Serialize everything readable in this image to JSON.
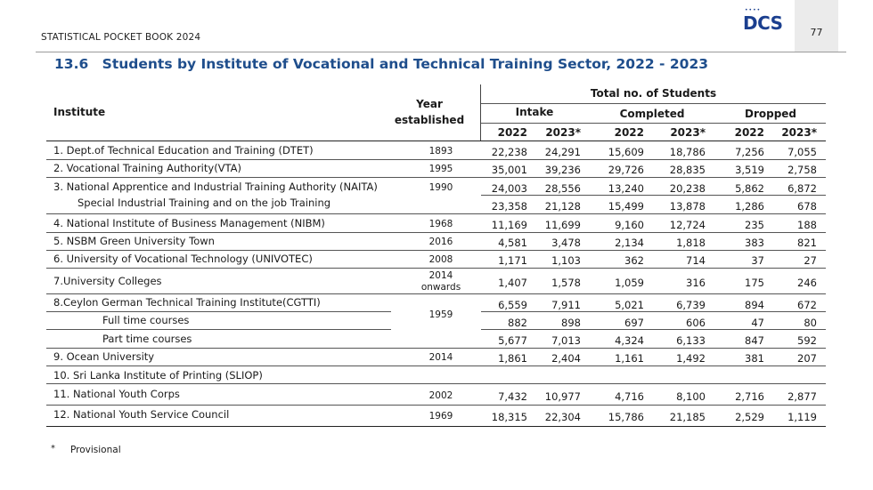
{
  "header": {
    "publication": "STATISTICAL POCKET BOOK 2024",
    "logo_text": "DCS",
    "logo_dots": "••••",
    "page_number": "77"
  },
  "title": {
    "number": "13.6",
    "text": "Students by Institute of Vocational and Technical Training Sector, 2022 - 2023"
  },
  "table": {
    "col_institute": "Institute",
    "col_year_1": "Year",
    "col_year_2": "established",
    "group_total": "Total no. of Students",
    "group_intake": "Intake",
    "group_completed": "Completed",
    "group_dropped": "Dropped",
    "years": [
      "2022",
      "2023*",
      "2022",
      "2023*",
      "2022",
      "2023*"
    ],
    "rows": [
      {
        "institute": "1. Dept.of Technical Education and Training  (DTET)",
        "year": "1893",
        "v": [
          "22,238",
          "24,291",
          "15,609",
          "18,786",
          "7,256",
          "7,055"
        ]
      },
      {
        "institute": "2. Vocational Training Authority(VTA)",
        "year": "1995",
        "v": [
          "35,001",
          "39,236",
          "29,726",
          "28,835",
          "3,519",
          "2,758"
        ]
      },
      {
        "institute": "3. National Apprentice and Industrial Training Authority (NAITA)",
        "year": "1990",
        "v": [
          "24,003",
          "28,556",
          "13,240",
          "20,238",
          "5,862",
          "6,872"
        ]
      },
      {
        "institute": "Special Industrial Training and on  the job Training",
        "year": "",
        "v": [
          "23,358",
          "21,128",
          "15,499",
          "13,878",
          "1,286",
          "678"
        ]
      },
      {
        "institute": "4. National Institute of Business Management (NIBM)",
        "year": "1968",
        "v": [
          "11,169",
          "11,699",
          "9,160",
          "12,724",
          "235",
          "188"
        ]
      },
      {
        "institute": "5. NSBM Green University Town",
        "year": "2016",
        "v": [
          "4,581",
          "3,478",
          "2,134",
          "1,818",
          "383",
          "821"
        ]
      },
      {
        "institute": "6. University of Vocational Technology (UNIVOTEC)",
        "year": "2008",
        "v": [
          "1,171",
          "1,103",
          "362",
          "714",
          "37",
          "27"
        ]
      },
      {
        "institute": "7.University Colleges",
        "year_1": "2014",
        "year_2": "onwards",
        "v": [
          "1,407",
          "1,578",
          "1,059",
          "316",
          "175",
          "246"
        ]
      },
      {
        "institute": "8.Ceylon German Technical Training Institute(CGTTI)",
        "year": "1959",
        "v": [
          "6,559",
          "7,911",
          "5,021",
          "6,739",
          "894",
          "672"
        ]
      },
      {
        "institute": "Full time courses",
        "year": "",
        "v": [
          "882",
          "898",
          "697",
          "606",
          "47",
          "80"
        ]
      },
      {
        "institute": "Part time courses",
        "year": "",
        "v": [
          "5,677",
          "7,013",
          "4,324",
          "6,133",
          "847",
          "592"
        ]
      },
      {
        "institute": "9. Ocean University",
        "year": "2014",
        "v": [
          "1,861",
          "2,404",
          "1,161",
          "1,492",
          "381",
          "207"
        ]
      },
      {
        "institute": "10. Sri Lanka Institute of Printing (SLIOP)",
        "year": "",
        "v": [
          "",
          "",
          "",
          "",
          "",
          ""
        ]
      },
      {
        "institute": "11. National Youth Corps",
        "year": "2002",
        "v": [
          "7,432",
          "10,977",
          "4,716",
          "8,100",
          "2,716",
          "2,877"
        ]
      },
      {
        "institute": "12. National Youth Service Council",
        "year": "1969",
        "v": [
          "18,315",
          "22,304",
          "15,786",
          "21,185",
          "2,529",
          "1,119"
        ]
      }
    ]
  },
  "footnote": {
    "marker": "*",
    "text": "Provisional"
  }
}
